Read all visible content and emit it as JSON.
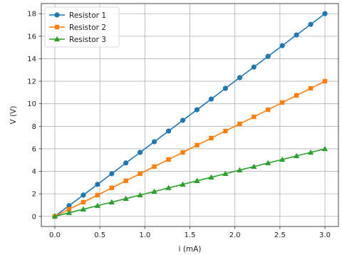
{
  "chart_data": {
    "type": "line",
    "xlabel": "i (mA)",
    "ylabel": "V (V)",
    "xlim": [
      -0.15,
      3.15
    ],
    "ylim": [
      -0.9,
      18.9
    ],
    "xticks": [
      0.0,
      0.5,
      1.0,
      1.5,
      2.0,
      2.5,
      3.0
    ],
    "xtick_labels": [
      "0.0",
      "0.5",
      "1.0",
      "1.5",
      "2.0",
      "2.5",
      "3.0"
    ],
    "yticks": [
      0,
      2,
      4,
      6,
      8,
      10,
      12,
      14,
      16,
      18
    ],
    "ytick_labels": [
      "0",
      "2",
      "4",
      "6",
      "8",
      "10",
      "12",
      "14",
      "16",
      "18"
    ],
    "grid": true,
    "legend_position": "top-left",
    "x": [
      0.0,
      0.158,
      0.316,
      0.474,
      0.632,
      0.789,
      0.947,
      1.105,
      1.263,
      1.421,
      1.579,
      1.737,
      1.895,
      2.053,
      2.211,
      2.368,
      2.526,
      2.684,
      2.842,
      3.0
    ],
    "series": [
      {
        "name": "Resistor 1",
        "color": "#1f77b4",
        "marker": "circle",
        "values": [
          0.0,
          0.95,
          1.89,
          2.84,
          3.79,
          4.74,
          5.68,
          6.63,
          7.58,
          8.53,
          9.47,
          10.42,
          11.37,
          12.32,
          13.26,
          14.21,
          15.16,
          16.11,
          17.05,
          18.0
        ]
      },
      {
        "name": "Resistor 2",
        "color": "#ff7f0e",
        "marker": "square",
        "values": [
          0.0,
          0.63,
          1.26,
          1.89,
          2.53,
          3.16,
          3.79,
          4.42,
          5.05,
          5.68,
          6.32,
          6.95,
          7.58,
          8.21,
          8.84,
          9.47,
          10.11,
          10.74,
          11.37,
          12.0
        ]
      },
      {
        "name": "Resistor 3",
        "color": "#2ca02c",
        "marker": "triangle",
        "values": [
          0.0,
          0.32,
          0.63,
          0.95,
          1.26,
          1.58,
          1.89,
          2.21,
          2.53,
          2.84,
          3.16,
          3.47,
          3.79,
          4.11,
          4.42,
          4.74,
          5.05,
          5.37,
          5.68,
          6.0
        ]
      }
    ]
  }
}
